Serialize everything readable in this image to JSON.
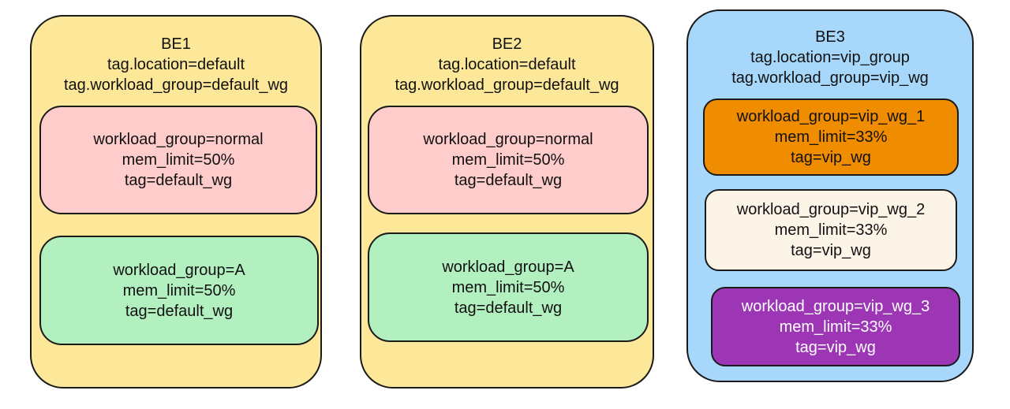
{
  "backends": [
    {
      "name": "BE1",
      "location": "tag.location=default",
      "workload_tag": "tag.workload_group=default_wg",
      "fill": "#fde89a",
      "groups": [
        {
          "line1": "workload_group=normal",
          "line2": "mem_limit=50%",
          "line3": "tag=default_wg",
          "fill": "#ffcccc",
          "text_color": "#111111"
        },
        {
          "line1": "workload_group=A",
          "line2": "mem_limit=50%",
          "line3": "tag=default_wg",
          "fill": "#b3f0c0",
          "text_color": "#111111"
        }
      ]
    },
    {
      "name": "BE2",
      "location": "tag.location=default",
      "workload_tag": "tag.workload_group=default_wg",
      "fill": "#fde89a",
      "groups": [
        {
          "line1": "workload_group=normal",
          "line2": "mem_limit=50%",
          "line3": "tag=default_wg",
          "fill": "#ffcccc",
          "text_color": "#111111"
        },
        {
          "line1": "workload_group=A",
          "line2": "mem_limit=50%",
          "line3": "tag=default_wg",
          "fill": "#b3f0c0",
          "text_color": "#111111"
        }
      ]
    },
    {
      "name": "BE3",
      "location": "tag.location=vip_group",
      "workload_tag": "tag.workload_group=vip_wg",
      "fill": "#a7d8fb",
      "groups": [
        {
          "line1": "workload_group=vip_wg_1",
          "line2": "mem_limit=33%",
          "line3": "tag=vip_wg",
          "fill": "#f08c00",
          "text_color": "#111111"
        },
        {
          "line1": "workload_group=vip_wg_2",
          "line2": "mem_limit=33%",
          "line3": "tag=vip_wg",
          "fill": "#fdf4e8",
          "text_color": "#111111"
        },
        {
          "line1": "workload_group=vip_wg_3",
          "line2": "mem_limit=33%",
          "line3": "tag=vip_wg",
          "fill": "#9c36b5",
          "text_color": "#ffffff"
        }
      ]
    }
  ]
}
